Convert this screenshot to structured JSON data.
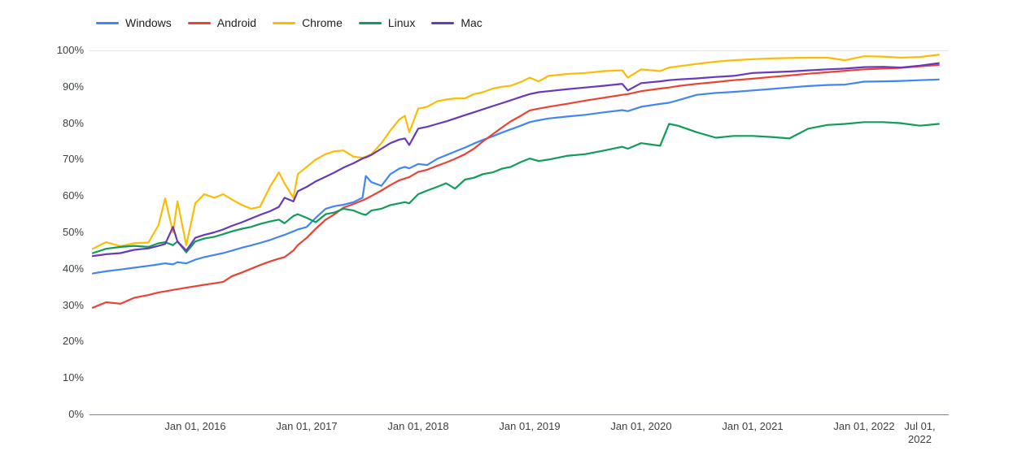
{
  "legend": {
    "items": [
      {
        "name": "windows",
        "label": "Windows",
        "color": "#4285F4"
      },
      {
        "name": "android",
        "label": "Android",
        "color": "#EA4335"
      },
      {
        "name": "chrome",
        "label": "Chrome",
        "color": "#FBBC04"
      },
      {
        "name": "linux",
        "label": "Linux",
        "color": "#0F9D58"
      },
      {
        "name": "mac",
        "label": "Mac",
        "color": "#673AB7"
      }
    ]
  },
  "chart_data": {
    "type": "line",
    "x_unit": "decimal_year",
    "ylim": [
      0,
      100
    ],
    "xlim": [
      2015.05,
      2022.75
    ],
    "grid": "top-line-only",
    "legend_position": "top-left",
    "y_ticks": [
      {
        "v": 100,
        "label": "100%"
      },
      {
        "v": 90,
        "label": "90%"
      },
      {
        "v": 80,
        "label": "80%"
      },
      {
        "v": 70,
        "label": "70%"
      },
      {
        "v": 60,
        "label": "60%"
      },
      {
        "v": 50,
        "label": "50%"
      },
      {
        "v": 40,
        "label": "40%"
      },
      {
        "v": 30,
        "label": "30%"
      },
      {
        "v": 20,
        "label": "20%"
      },
      {
        "v": 10,
        "label": "10%"
      },
      {
        "v": 0,
        "label": "0%"
      }
    ],
    "x_ticks": [
      {
        "t": 2016.0,
        "label": "Jan 01, 2016"
      },
      {
        "t": 2017.0,
        "label": "Jan 01, 2017"
      },
      {
        "t": 2018.0,
        "label": "Jan 01, 2018"
      },
      {
        "t": 2019.0,
        "label": "Jan 01, 2019"
      },
      {
        "t": 2020.0,
        "label": "Jan 01, 2020"
      },
      {
        "t": 2021.0,
        "label": "Jan 01, 2021"
      },
      {
        "t": 2022.0,
        "label": "Jan 01, 2022"
      },
      {
        "t": 2022.5,
        "label": "Jul 01, 2022",
        "wrap": true
      }
    ],
    "x": [
      2015.08,
      2015.2,
      2015.33,
      2015.45,
      2015.58,
      2015.67,
      2015.73,
      2015.8,
      2015.84,
      2015.92,
      2016.0,
      2016.08,
      2016.17,
      2016.25,
      2016.33,
      2016.42,
      2016.5,
      2016.58,
      2016.67,
      2016.75,
      2016.8,
      2016.88,
      2016.92,
      2017.0,
      2017.08,
      2017.17,
      2017.25,
      2017.33,
      2017.42,
      2017.5,
      2017.53,
      2017.58,
      2017.67,
      2017.75,
      2017.83,
      2017.88,
      2017.92,
      2018.0,
      2018.08,
      2018.17,
      2018.25,
      2018.33,
      2018.42,
      2018.5,
      2018.58,
      2018.67,
      2018.75,
      2018.83,
      2018.92,
      2019.0,
      2019.08,
      2019.17,
      2019.33,
      2019.5,
      2019.67,
      2019.83,
      2019.88,
      2020.0,
      2020.17,
      2020.25,
      2020.33,
      2020.5,
      2020.67,
      2020.83,
      2021.0,
      2021.17,
      2021.33,
      2021.5,
      2021.67,
      2021.83,
      2022.0,
      2022.17,
      2022.33,
      2022.5,
      2022.67
    ],
    "series": [
      {
        "name": "Windows",
        "color": "#4285F4",
        "values": [
          38.7,
          39.3,
          39.8,
          40.3,
          40.8,
          41.2,
          41.5,
          41.2,
          41.8,
          41.5,
          42.5,
          43.2,
          43.8,
          44.3,
          45.0,
          45.8,
          46.4,
          47.1,
          47.9,
          48.8,
          49.3,
          50.3,
          50.8,
          51.5,
          54.0,
          56.5,
          57.2,
          57.6,
          58.3,
          59.5,
          65.5,
          63.8,
          62.8,
          66.0,
          67.5,
          68.0,
          67.6,
          68.8,
          68.5,
          70.2,
          71.2,
          72.2,
          73.3,
          74.4,
          75.4,
          76.4,
          77.4,
          78.3,
          79.3,
          80.3,
          80.8,
          81.3,
          81.8,
          82.3,
          83.0,
          83.6,
          83.3,
          84.5,
          85.3,
          85.6,
          86.3,
          87.8,
          88.3,
          88.6,
          89.0,
          89.4,
          89.8,
          90.2,
          90.5,
          90.6,
          91.4,
          91.5,
          91.6,
          91.8,
          92.0
        ]
      },
      {
        "name": "Android",
        "color": "#EA4335",
        "values": [
          29.3,
          30.8,
          30.4,
          32.0,
          32.8,
          33.5,
          33.8,
          34.2,
          34.4,
          34.8,
          35.2,
          35.6,
          36.0,
          36.4,
          38.0,
          39.0,
          40.0,
          41.0,
          42.0,
          42.8,
          43.2,
          45.0,
          46.5,
          48.5,
          51.0,
          53.5,
          55.0,
          56.8,
          57.8,
          58.8,
          59.2,
          60.0,
          61.5,
          63.0,
          64.3,
          64.8,
          65.2,
          66.6,
          67.2,
          68.3,
          69.2,
          70.2,
          71.5,
          73.0,
          75.0,
          77.0,
          78.8,
          80.5,
          82.0,
          83.5,
          84.0,
          84.5,
          85.3,
          86.2,
          87.0,
          87.8,
          88.0,
          88.8,
          89.5,
          89.8,
          90.2,
          90.8,
          91.3,
          91.8,
          92.2,
          92.7,
          93.1,
          93.6,
          94.0,
          94.4,
          94.8,
          95.0,
          95.2,
          95.6,
          96.0
        ]
      },
      {
        "name": "Chrome",
        "color": "#FBBC04",
        "values": [
          45.5,
          47.3,
          46.2,
          47.0,
          47.2,
          52.0,
          59.3,
          50.0,
          58.5,
          46.5,
          58.0,
          60.5,
          59.5,
          60.5,
          59.0,
          57.5,
          56.5,
          57.0,
          62.5,
          66.5,
          63.5,
          59.5,
          66.0,
          68.0,
          70.0,
          71.5,
          72.3,
          72.5,
          70.8,
          70.5,
          70.8,
          71.5,
          74.5,
          78.0,
          81.0,
          82.0,
          77.5,
          84.0,
          84.5,
          86.0,
          86.5,
          86.8,
          86.8,
          88.0,
          88.5,
          89.5,
          90.0,
          90.3,
          91.3,
          92.5,
          91.5,
          93.0,
          93.5,
          93.8,
          94.3,
          94.5,
          92.5,
          94.8,
          94.3,
          95.3,
          95.6,
          96.3,
          96.9,
          97.3,
          97.6,
          97.8,
          97.9,
          98.0,
          98.0,
          97.3,
          98.4,
          98.3,
          98.0,
          98.2,
          98.8
        ]
      },
      {
        "name": "Linux",
        "color": "#0F9D58",
        "values": [
          44.3,
          45.5,
          46.0,
          46.3,
          46.0,
          47.0,
          47.3,
          46.5,
          47.5,
          44.5,
          47.5,
          48.3,
          48.8,
          49.5,
          50.3,
          51.0,
          51.5,
          52.3,
          53.0,
          53.5,
          52.5,
          54.5,
          55.0,
          54.0,
          52.8,
          55.0,
          55.5,
          56.5,
          56.0,
          55.0,
          54.8,
          56.0,
          56.5,
          57.5,
          58.0,
          58.3,
          58.0,
          60.5,
          61.5,
          62.5,
          63.5,
          62.0,
          64.5,
          65.0,
          66.0,
          66.5,
          67.5,
          68.0,
          69.3,
          70.3,
          69.6,
          70.0,
          71.0,
          71.5,
          72.5,
          73.5,
          73.0,
          74.5,
          73.8,
          79.8,
          79.3,
          77.5,
          76.0,
          76.5,
          76.5,
          76.2,
          75.8,
          78.5,
          79.5,
          79.8,
          80.3,
          80.3,
          80.0,
          79.3,
          79.8
        ]
      },
      {
        "name": "Mac",
        "color": "#673AB7",
        "values": [
          43.5,
          44.0,
          44.3,
          45.2,
          45.6,
          46.3,
          46.8,
          51.5,
          47.5,
          45.0,
          48.5,
          49.3,
          50.0,
          50.8,
          51.8,
          52.8,
          53.8,
          54.8,
          55.8,
          57.0,
          59.5,
          58.5,
          61.3,
          62.5,
          64.0,
          65.3,
          66.5,
          67.8,
          69.0,
          70.3,
          70.6,
          71.3,
          73.0,
          74.5,
          75.5,
          75.8,
          74.0,
          78.5,
          79.0,
          79.8,
          80.5,
          81.3,
          82.2,
          83.0,
          83.8,
          84.7,
          85.5,
          86.3,
          87.2,
          88.0,
          88.5,
          88.8,
          89.3,
          89.8,
          90.3,
          90.8,
          89.0,
          91.0,
          91.5,
          91.8,
          92.0,
          92.3,
          92.7,
          93.0,
          93.8,
          94.0,
          94.2,
          94.5,
          94.8,
          95.0,
          95.4,
          95.5,
          95.3,
          95.8,
          96.5
        ]
      }
    ]
  },
  "style": {
    "axis_line_color": "#80868b",
    "gridline_color": "#e6e6e6",
    "tick_label_color": "#3c4043"
  }
}
